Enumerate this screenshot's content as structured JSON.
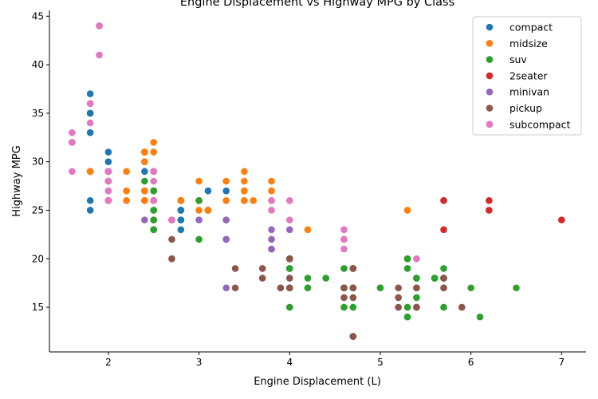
{
  "chart_data": {
    "type": "scatter",
    "title": "Engine Displacement vs Highway MPG by Class",
    "xlabel": "Engine Displacement (L)",
    "ylabel": "Highway MPG",
    "xlim": [
      1.35,
      7.27
    ],
    "ylim": [
      10.4,
      45.6
    ],
    "xticks": [
      2,
      3,
      4,
      5,
      6,
      7
    ],
    "yticks": [
      15,
      20,
      25,
      30,
      35,
      40,
      45
    ],
    "grid": false,
    "legend_position": "top-right",
    "series": [
      {
        "name": "compact",
        "color": "#1f77b4",
        "points": [
          [
            1.8,
            29
          ],
          [
            1.8,
            29
          ],
          [
            2.0,
            31
          ],
          [
            2.0,
            30
          ],
          [
            2.8,
            26
          ],
          [
            2.8,
            26
          ],
          [
            3.1,
            27
          ],
          [
            1.8,
            26
          ],
          [
            1.8,
            25
          ],
          [
            2.0,
            28
          ],
          [
            2.0,
            29
          ],
          [
            2.8,
            25
          ],
          [
            2.8,
            25
          ],
          [
            3.1,
            25
          ],
          [
            2.8,
            25
          ],
          [
            3.1,
            25
          ],
          [
            1.8,
            29
          ],
          [
            2.0,
            29
          ],
          [
            2.0,
            28
          ],
          [
            2.4,
            29
          ],
          [
            2.4,
            27
          ],
          [
            2.4,
            31
          ],
          [
            2.4,
            30
          ],
          [
            1.8,
            33
          ],
          [
            1.8,
            35
          ],
          [
            1.8,
            37
          ],
          [
            1.8,
            35
          ],
          [
            2.0,
            29
          ],
          [
            2.0,
            26
          ],
          [
            2.0,
            29
          ],
          [
            2.0,
            29
          ],
          [
            2.8,
            24
          ],
          [
            2.8,
            24
          ],
          [
            2.8,
            23
          ],
          [
            3.3,
            27
          ],
          [
            1.9,
            44
          ],
          [
            2.0,
            29
          ],
          [
            2.0,
            26
          ],
          [
            2.0,
            29
          ],
          [
            2.5,
            29
          ],
          [
            2.5,
            29
          ],
          [
            2.5,
            23
          ],
          [
            2.5,
            24
          ]
        ]
      },
      {
        "name": "midsize",
        "color": "#ff7f0e",
        "points": [
          [
            2.4,
            27
          ],
          [
            3.0,
            26
          ],
          [
            3.3,
            28
          ],
          [
            1.8,
            29
          ],
          [
            1.8,
            29
          ],
          [
            2.0,
            28
          ],
          [
            2.0,
            29
          ],
          [
            2.8,
            26
          ],
          [
            2.8,
            26
          ],
          [
            3.6,
            26
          ],
          [
            2.4,
            27
          ],
          [
            2.4,
            30
          ],
          [
            2.4,
            31
          ],
          [
            2.5,
            26
          ],
          [
            2.5,
            26
          ],
          [
            3.5,
            27
          ],
          [
            2.4,
            26
          ],
          [
            3.0,
            25
          ],
          [
            3.3,
            26
          ],
          [
            2.2,
            27
          ],
          [
            2.2,
            29
          ],
          [
            2.4,
            31
          ],
          [
            2.4,
            31
          ],
          [
            3.0,
            26
          ],
          [
            3.0,
            26
          ],
          [
            3.5,
            29
          ],
          [
            3.5,
            28
          ],
          [
            2.5,
            31
          ],
          [
            2.5,
            32
          ],
          [
            3.5,
            27
          ],
          [
            3.5,
            26
          ],
          [
            3.8,
            28
          ],
          [
            3.8,
            27
          ],
          [
            3.8,
            26
          ],
          [
            5.3,
            25
          ],
          [
            4.2,
            23
          ],
          [
            3.1,
            25
          ],
          [
            3.1,
            25
          ],
          [
            1.8,
            29
          ],
          [
            2.0,
            26
          ],
          [
            2.2,
            26
          ],
          [
            2.4,
            26
          ],
          [
            2.4,
            26
          ],
          [
            3.0,
            28
          ],
          [
            3.5,
            26
          ],
          [
            2.0,
            29
          ],
          [
            2.8,
            26
          ]
        ]
      },
      {
        "name": "suv",
        "color": "#2ca02c",
        "points": [
          [
            5.3,
            20
          ],
          [
            5.3,
            15
          ],
          [
            5.3,
            20
          ],
          [
            5.7,
            17
          ],
          [
            6.0,
            17
          ],
          [
            5.7,
            26
          ],
          [
            4.0,
            20
          ],
          [
            4.0,
            19
          ],
          [
            4.6,
            19
          ],
          [
            5.4,
            17
          ],
          [
            4.2,
            17
          ],
          [
            4.2,
            17
          ],
          [
            4.7,
            17
          ],
          [
            4.7,
            17
          ],
          [
            4.7,
            15
          ],
          [
            5.7,
            19
          ],
          [
            6.1,
            14
          ],
          [
            4.0,
            20
          ],
          [
            4.7,
            17
          ],
          [
            4.7,
            17
          ],
          [
            4.0,
            17
          ],
          [
            4.0,
            17
          ],
          [
            4.6,
            17
          ],
          [
            5.0,
            17
          ],
          [
            4.2,
            18
          ],
          [
            4.4,
            18
          ],
          [
            5.4,
            18
          ],
          [
            2.5,
            23
          ],
          [
            2.5,
            25
          ],
          [
            2.5,
            27
          ],
          [
            2.5,
            27
          ],
          [
            2.5,
            25
          ],
          [
            2.5,
            24
          ],
          [
            2.7,
            24
          ],
          [
            2.7,
            24
          ],
          [
            3.0,
            22
          ],
          [
            3.0,
            26
          ],
          [
            4.0,
            15
          ],
          [
            4.0,
            19
          ],
          [
            4.6,
            15
          ],
          [
            5.0,
            17
          ],
          [
            5.3,
            14
          ],
          [
            5.3,
            20
          ],
          [
            5.6,
            18
          ],
          [
            5.6,
            18
          ],
          [
            5.7,
            18
          ],
          [
            5.7,
            15
          ],
          [
            6.5,
            17
          ],
          [
            5.4,
            16
          ],
          [
            4.7,
            19
          ],
          [
            4.7,
            12
          ],
          [
            4.7,
            12
          ],
          [
            5.7,
            18
          ],
          [
            3.8,
            21
          ],
          [
            4.0,
            19
          ],
          [
            4.6,
            17
          ],
          [
            5.4,
            18
          ],
          [
            5.3,
            19
          ],
          [
            4.0,
            20
          ],
          [
            2.4,
            28
          ]
        ]
      },
      {
        "name": "2seater",
        "color": "#d62728",
        "points": [
          [
            5.7,
            26
          ],
          [
            5.7,
            23
          ],
          [
            6.2,
            26
          ],
          [
            6.2,
            25
          ],
          [
            7.0,
            24
          ]
        ]
      },
      {
        "name": "minivan",
        "color": "#9467bd",
        "points": [
          [
            2.4,
            24
          ],
          [
            3.0,
            24
          ],
          [
            3.3,
            22
          ],
          [
            3.3,
            22
          ],
          [
            3.3,
            24
          ],
          [
            3.3,
            24
          ],
          [
            3.3,
            17
          ],
          [
            3.8,
            22
          ],
          [
            3.8,
            21
          ],
          [
            3.8,
            23
          ],
          [
            4.0,
            23
          ]
        ]
      },
      {
        "name": "pickup",
        "color": "#8c564b",
        "points": [
          [
            3.7,
            19
          ],
          [
            3.7,
            18
          ],
          [
            3.9,
            17
          ],
          [
            3.9,
            17
          ],
          [
            4.7,
            19
          ],
          [
            4.7,
            19
          ],
          [
            4.7,
            12
          ],
          [
            5.2,
            17
          ],
          [
            5.2,
            15
          ],
          [
            5.7,
            17
          ],
          [
            5.9,
            15
          ],
          [
            4.7,
            12
          ],
          [
            4.7,
            17
          ],
          [
            4.7,
            16
          ],
          [
            5.7,
            18
          ],
          [
            4.6,
            17
          ],
          [
            5.4,
            17
          ],
          [
            5.4,
            15
          ],
          [
            4.0,
            20
          ],
          [
            4.0,
            20
          ],
          [
            4.0,
            18
          ],
          [
            4.0,
            20
          ],
          [
            4.6,
            16
          ],
          [
            4.6,
            17
          ],
          [
            5.4,
            15
          ],
          [
            5.4,
            17
          ],
          [
            2.7,
            20
          ],
          [
            2.7,
            22
          ],
          [
            2.7,
            20
          ],
          [
            3.4,
            17
          ],
          [
            3.4,
            19
          ],
          [
            4.0,
            17
          ],
          [
            4.0,
            20
          ],
          [
            5.2,
            16
          ]
        ]
      },
      {
        "name": "subcompact",
        "color": "#e377c2",
        "points": [
          [
            3.8,
            26
          ],
          [
            3.8,
            25
          ],
          [
            4.0,
            26
          ],
          [
            4.0,
            24
          ],
          [
            4.6,
            21
          ],
          [
            4.6,
            22
          ],
          [
            4.6,
            23
          ],
          [
            4.6,
            22
          ],
          [
            5.4,
            20
          ],
          [
            1.6,
            33
          ],
          [
            1.6,
            32
          ],
          [
            1.6,
            32
          ],
          [
            1.6,
            29
          ],
          [
            1.6,
            32
          ],
          [
            1.8,
            34
          ],
          [
            1.8,
            36
          ],
          [
            1.8,
            36
          ],
          [
            2.0,
            29
          ],
          [
            2.0,
            26
          ],
          [
            2.0,
            27
          ],
          [
            2.0,
            28
          ],
          [
            2.5,
            26
          ],
          [
            2.5,
            29
          ],
          [
            2.5,
            26
          ],
          [
            2.5,
            28
          ],
          [
            1.9,
            44
          ],
          [
            1.9,
            41
          ],
          [
            2.0,
            29
          ],
          [
            2.0,
            26
          ],
          [
            2.5,
            29
          ],
          [
            2.7,
            24
          ],
          [
            2.7,
            24
          ],
          [
            2.7,
            24
          ]
        ]
      }
    ]
  }
}
